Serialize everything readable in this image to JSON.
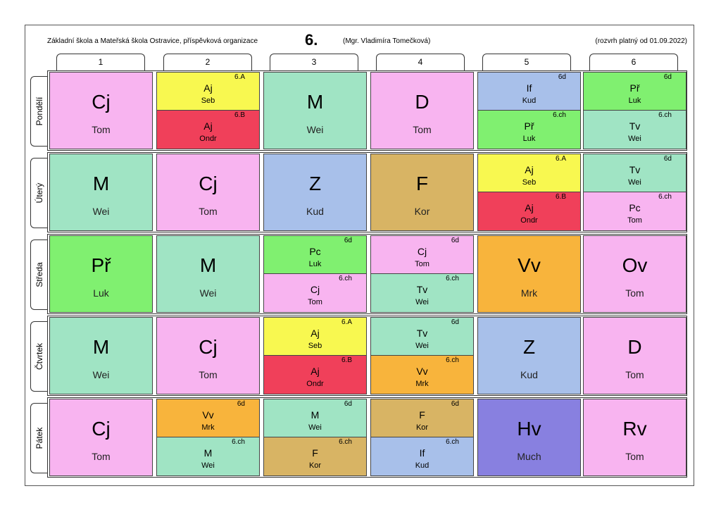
{
  "header": {
    "school": "Základní škola a Mateřská škola Ostravice, příspěvková organizace",
    "class_name": "6.",
    "teacher": "(Mgr. Vladimíra Tomečková)",
    "valid_from": "(rozvrh platný od 01.09.2022)"
  },
  "periods": [
    "1",
    "2",
    "3",
    "4",
    "5",
    "6"
  ],
  "days": [
    "Pondělí",
    "Úterý",
    "Středa",
    "Čtvrtek",
    "Pátek"
  ],
  "colors": {
    "pink": "#f8b4f0",
    "mint": "#a0e4c4",
    "blue": "#a8c0ea",
    "tan": "#d8b464",
    "green": "#80f070",
    "yellow": "#f8f850",
    "red": "#f0405a",
    "orange": "#f8b43c",
    "purple": "#8880e0"
  },
  "schedule": [
    [
      {
        "subject": "Cj",
        "teacher": "Tom",
        "color": "pink"
      },
      {
        "split": [
          {
            "group": "6.A",
            "subject": "Aj",
            "teacher": "Seb",
            "color": "yellow"
          },
          {
            "group": "6.B",
            "subject": "Aj",
            "teacher": "Ondr",
            "color": "red"
          }
        ]
      },
      {
        "subject": "M",
        "teacher": "Wei",
        "color": "mint"
      },
      {
        "subject": "D",
        "teacher": "Tom",
        "color": "pink"
      },
      {
        "split": [
          {
            "group": "6d",
            "subject": "If",
            "teacher": "Kud",
            "color": "blue"
          },
          {
            "group": "6.ch",
            "subject": "Př",
            "teacher": "Luk",
            "color": "green"
          }
        ]
      },
      {
        "split": [
          {
            "group": "6d",
            "subject": "Př",
            "teacher": "Luk",
            "color": "green"
          },
          {
            "group": "6.ch",
            "subject": "Tv",
            "teacher": "Wei",
            "color": "mint"
          }
        ]
      }
    ],
    [
      {
        "subject": "M",
        "teacher": "Wei",
        "color": "mint"
      },
      {
        "subject": "Cj",
        "teacher": "Tom",
        "color": "pink"
      },
      {
        "subject": "Z",
        "teacher": "Kud",
        "color": "blue"
      },
      {
        "subject": "F",
        "teacher": "Kor",
        "color": "tan"
      },
      {
        "split": [
          {
            "group": "6.A",
            "subject": "Aj",
            "teacher": "Seb",
            "color": "yellow"
          },
          {
            "group": "6.B",
            "subject": "Aj",
            "teacher": "Ondr",
            "color": "red"
          }
        ]
      },
      {
        "split": [
          {
            "group": "6d",
            "subject": "Tv",
            "teacher": "Wei",
            "color": "mint"
          },
          {
            "group": "6.ch",
            "subject": "Pc",
            "teacher": "Tom",
            "color": "pink"
          }
        ]
      }
    ],
    [
      {
        "subject": "Př",
        "teacher": "Luk",
        "color": "green"
      },
      {
        "subject": "M",
        "teacher": "Wei",
        "color": "mint"
      },
      {
        "split": [
          {
            "group": "6d",
            "subject": "Pc",
            "teacher": "Luk",
            "color": "green"
          },
          {
            "group": "6.ch",
            "subject": "Cj",
            "teacher": "Tom",
            "color": "pink"
          }
        ]
      },
      {
        "split": [
          {
            "group": "6d",
            "subject": "Cj",
            "teacher": "Tom",
            "color": "pink"
          },
          {
            "group": "6.ch",
            "subject": "Tv",
            "teacher": "Wei",
            "color": "mint"
          }
        ]
      },
      {
        "subject": "Vv",
        "teacher": "Mrk",
        "color": "orange"
      },
      {
        "subject": "Ov",
        "teacher": "Tom",
        "color": "pink"
      }
    ],
    [
      {
        "subject": "M",
        "teacher": "Wei",
        "color": "mint"
      },
      {
        "subject": "Cj",
        "teacher": "Tom",
        "color": "pink"
      },
      {
        "split": [
          {
            "group": "6.A",
            "subject": "Aj",
            "teacher": "Seb",
            "color": "yellow"
          },
          {
            "group": "6.B",
            "subject": "Aj",
            "teacher": "Ondr",
            "color": "red"
          }
        ]
      },
      {
        "split": [
          {
            "group": "6d",
            "subject": "Tv",
            "teacher": "Wei",
            "color": "mint"
          },
          {
            "group": "6.ch",
            "subject": "Vv",
            "teacher": "Mrk",
            "color": "orange"
          }
        ]
      },
      {
        "subject": "Z",
        "teacher": "Kud",
        "color": "blue"
      },
      {
        "subject": "D",
        "teacher": "Tom",
        "color": "pink"
      }
    ],
    [
      {
        "subject": "Cj",
        "teacher": "Tom",
        "color": "pink"
      },
      {
        "split": [
          {
            "group": "6d",
            "subject": "Vv",
            "teacher": "Mrk",
            "color": "orange"
          },
          {
            "group": "6.ch",
            "subject": "M",
            "teacher": "Wei",
            "color": "mint"
          }
        ]
      },
      {
        "split": [
          {
            "group": "6d",
            "subject": "M",
            "teacher": "Wei",
            "color": "mint"
          },
          {
            "group": "6.ch",
            "subject": "F",
            "teacher": "Kor",
            "color": "tan"
          }
        ]
      },
      {
        "split": [
          {
            "group": "6d",
            "subject": "F",
            "teacher": "Kor",
            "color": "tan"
          },
          {
            "group": "6.ch",
            "subject": "If",
            "teacher": "Kud",
            "color": "blue"
          }
        ]
      },
      {
        "subject": "Hv",
        "teacher": "Much",
        "color": "purple"
      },
      {
        "subject": "Rv",
        "teacher": "Tom",
        "color": "pink"
      }
    ]
  ]
}
